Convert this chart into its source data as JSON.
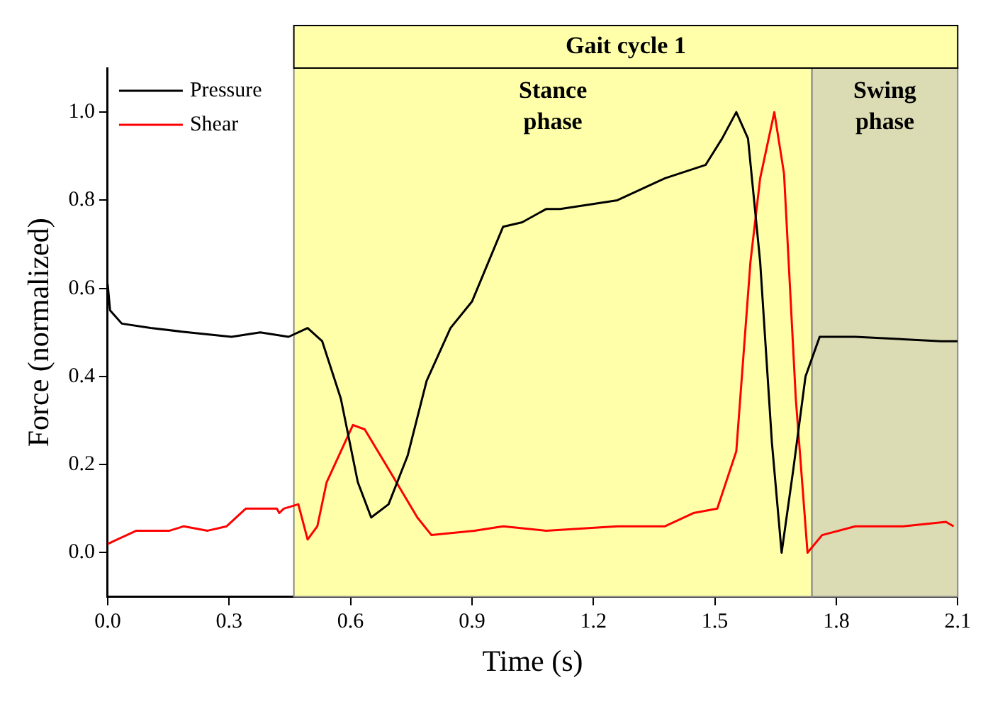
{
  "chart_data": {
    "type": "line",
    "xlabel": "Time (s)",
    "ylabel": "Force (normalized)",
    "annotations": [
      "Gait cycle 1"
    ],
    "xlim": [
      0,
      2.1
    ],
    "ylim": [
      -0.1,
      1.1
    ],
    "xticks": [
      {
        "value": 0,
        "label": "0.0"
      },
      0.3,
      0.6,
      0.9,
      1.2,
      1.5,
      1.8,
      2.1
    ],
    "yticks": [
      {
        "value": 0,
        "label": "0.0"
      },
      0.2,
      0.4,
      0.6,
      0.8,
      {
        "value": 1,
        "label": "1.0"
      }
    ],
    "grid": false,
    "legend": "top left",
    "marker": "none",
    "line_style": "solid",
    "bands": [
      {
        "axis": "x",
        "from": 0.46,
        "to": 1.74,
        "label": "Stance phase",
        "color": "#ffffaa"
      },
      {
        "axis": "x",
        "from": 1.74,
        "to": 2.1,
        "label": "Swing phase",
        "color": "#dcdcb4"
      }
    ],
    "series": [
      {
        "name": "Pressure",
        "color": "#000000",
        "x": [
          0,
          0.006,
          0.035,
          0.106,
          0.2,
          0.306,
          0.377,
          0.447,
          0.494,
          0.53,
          0.576,
          0.618,
          0.651,
          0.694,
          0.741,
          0.788,
          0.847,
          0.9,
          0.977,
          1.024,
          1.083,
          1.118,
          1.259,
          1.377,
          1.477,
          1.518,
          1.553,
          1.582,
          1.612,
          1.641,
          1.665,
          1.694,
          1.724,
          1.759,
          1.847,
          2.059,
          2.1
        ],
        "values": [
          0.61,
          0.55,
          0.52,
          0.51,
          0.5,
          0.49,
          0.5,
          0.49,
          0.51,
          0.48,
          0.35,
          0.16,
          0.08,
          0.11,
          0.22,
          0.39,
          0.51,
          0.57,
          0.74,
          0.75,
          0.78,
          0.78,
          0.8,
          0.85,
          0.88,
          0.94,
          1.0,
          0.94,
          0.66,
          0.25,
          0.0,
          0.19,
          0.4,
          0.49,
          0.49,
          0.48,
          0.48
        ]
      },
      {
        "name": "Shear",
        "color": "#ff0000",
        "x": [
          0,
          0.071,
          0.153,
          0.188,
          0.247,
          0.294,
          0.341,
          0.418,
          0.424,
          0.435,
          0.471,
          0.494,
          0.518,
          0.541,
          0.571,
          0.606,
          0.635,
          0.694,
          0.765,
          0.8,
          0.906,
          0.977,
          1.083,
          1.259,
          1.377,
          1.447,
          1.506,
          1.553,
          1.588,
          1.612,
          1.647,
          1.671,
          1.7,
          1.729,
          1.765,
          1.847,
          1.965,
          2.071,
          2.09
        ],
        "values": [
          0.02,
          0.05,
          0.05,
          0.06,
          0.05,
          0.06,
          0.1,
          0.1,
          0.09,
          0.1,
          0.11,
          0.03,
          0.06,
          0.16,
          0.22,
          0.29,
          0.28,
          0.19,
          0.08,
          0.04,
          0.05,
          0.06,
          0.05,
          0.06,
          0.06,
          0.09,
          0.1,
          0.23,
          0.66,
          0.85,
          1.0,
          0.86,
          0.35,
          0.0,
          0.04,
          0.06,
          0.06,
          0.07,
          0.06
        ]
      }
    ]
  }
}
